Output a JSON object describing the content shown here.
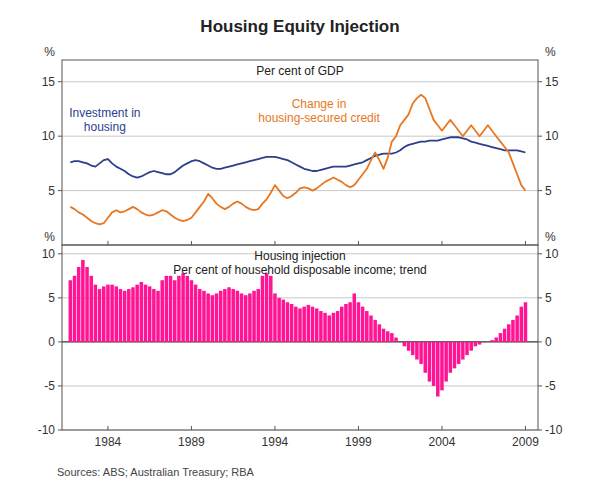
{
  "chart_data": [
    {
      "type": "line",
      "title": "Housing Equity Injection",
      "subtitle": "Per cent of GDP",
      "x": [
        1981.75,
        1982,
        1982.25,
        1982.5,
        1982.75,
        1983,
        1983.25,
        1983.5,
        1983.75,
        1984,
        1984.25,
        1984.5,
        1984.75,
        1985,
        1985.25,
        1985.5,
        1985.75,
        1986,
        1986.25,
        1986.5,
        1986.75,
        1987,
        1987.25,
        1987.5,
        1987.75,
        1988,
        1988.25,
        1988.5,
        1988.75,
        1989,
        1989.25,
        1989.5,
        1989.75,
        1990,
        1990.25,
        1990.5,
        1990.75,
        1991,
        1991.25,
        1991.5,
        1991.75,
        1992,
        1992.25,
        1992.5,
        1992.75,
        1993,
        1993.25,
        1993.5,
        1993.75,
        1994,
        1994.25,
        1994.5,
        1994.75,
        1995,
        1995.25,
        1995.5,
        1995.75,
        1996,
        1996.25,
        1996.5,
        1996.75,
        1997,
        1997.25,
        1997.5,
        1997.75,
        1998,
        1998.25,
        1998.5,
        1998.75,
        1999,
        1999.25,
        1999.5,
        1999.75,
        2000,
        2000.25,
        2000.5,
        2000.75,
        2001,
        2001.25,
        2001.5,
        2001.75,
        2002,
        2002.25,
        2002.5,
        2002.75,
        2003,
        2003.25,
        2003.5,
        2003.75,
        2004,
        2004.25,
        2004.5,
        2004.75,
        2005,
        2005.25,
        2005.5,
        2005.75,
        2006,
        2006.25,
        2006.5,
        2006.75,
        2007,
        2007.25,
        2007.5,
        2007.75,
        2008,
        2008.25,
        2008.5,
        2008.75,
        2009
      ],
      "series": [
        {
          "name": "Investment in\nhousing",
          "color": "#2B3F8C",
          "values": [
            7.6,
            7.7,
            7.7,
            7.6,
            7.5,
            7.3,
            7.2,
            7.5,
            7.8,
            7.9,
            7.5,
            7.2,
            7.0,
            6.8,
            6.5,
            6.3,
            6.2,
            6.3,
            6.5,
            6.7,
            6.8,
            6.7,
            6.6,
            6.5,
            6.5,
            6.7,
            7.0,
            7.3,
            7.5,
            7.7,
            7.8,
            7.7,
            7.5,
            7.3,
            7.1,
            7.0,
            7.0,
            7.1,
            7.2,
            7.3,
            7.4,
            7.5,
            7.6,
            7.7,
            7.8,
            7.9,
            8.0,
            8.1,
            8.1,
            8.1,
            8.0,
            7.9,
            7.8,
            7.6,
            7.4,
            7.2,
            7.0,
            6.9,
            6.8,
            6.8,
            6.9,
            7.0,
            7.1,
            7.2,
            7.2,
            7.2,
            7.2,
            7.3,
            7.4,
            7.5,
            7.6,
            7.8,
            8.0,
            8.2,
            8.3,
            8.4,
            8.4,
            8.4,
            8.5,
            8.7,
            9.0,
            9.2,
            9.3,
            9.4,
            9.5,
            9.5,
            9.6,
            9.6,
            9.6,
            9.7,
            9.8,
            9.9,
            9.9,
            9.9,
            9.8,
            9.7,
            9.5,
            9.4,
            9.3,
            9.2,
            9.1,
            9.0,
            8.9,
            8.8,
            8.7,
            8.7,
            8.7,
            8.7,
            8.6,
            8.5
          ]
        },
        {
          "name": "Change in\nhousing-secured credit",
          "color": "#E87722",
          "values": [
            3.5,
            3.3,
            3.0,
            2.8,
            2.5,
            2.2,
            2.0,
            1.9,
            2.0,
            2.5,
            3.0,
            3.2,
            3.0,
            3.1,
            3.3,
            3.5,
            3.3,
            3.0,
            2.8,
            2.7,
            2.8,
            3.0,
            3.2,
            3.1,
            2.8,
            2.5,
            2.3,
            2.2,
            2.3,
            2.5,
            3.0,
            3.5,
            4.0,
            4.7,
            4.3,
            3.8,
            3.5,
            3.3,
            3.5,
            3.8,
            4.0,
            3.8,
            3.5,
            3.3,
            3.2,
            3.3,
            3.8,
            4.2,
            4.8,
            5.5,
            5.0,
            4.5,
            4.3,
            4.5,
            4.8,
            5.2,
            5.3,
            5.2,
            5.0,
            5.2,
            5.5,
            5.8,
            6.0,
            6.2,
            6.0,
            5.8,
            5.5,
            5.3,
            5.5,
            6.0,
            6.5,
            7.0,
            7.8,
            8.5,
            7.8,
            7.0,
            8.0,
            9.5,
            10.0,
            11.0,
            11.5,
            12.0,
            13.0,
            13.5,
            13.8,
            13.5,
            12.5,
            11.5,
            11.0,
            10.5,
            11.0,
            11.5,
            11.0,
            10.5,
            10.0,
            10.5,
            11.0,
            10.5,
            10.0,
            10.5,
            11.0,
            10.5,
            10.0,
            9.5,
            9.0,
            8.5,
            7.5,
            6.5,
            5.5,
            5.0
          ]
        }
      ],
      "xlim": [
        1981.25,
        2009.75
      ],
      "xticks": [
        1984,
        1989,
        1994,
        1999,
        2004,
        2009
      ],
      "ylim": [
        0,
        17
      ],
      "yticks": [
        5,
        10,
        15
      ],
      "y2lim": [
        0,
        17
      ],
      "y2ticks": [
        5,
        10,
        15
      ],
      "ylabel": "%",
      "y2label": "%",
      "grid": true,
      "tick_labels": "y"
    },
    {
      "type": "bar",
      "subtitle": "Housing injection\nPer cent of household disposable income; trend",
      "x": [
        1981.75,
        1982,
        1982.25,
        1982.5,
        1982.75,
        1983,
        1983.25,
        1983.5,
        1983.75,
        1984,
        1984.25,
        1984.5,
        1984.75,
        1985,
        1985.25,
        1985.5,
        1985.75,
        1986,
        1986.25,
        1986.5,
        1986.75,
        1987,
        1987.25,
        1987.5,
        1987.75,
        1988,
        1988.25,
        1988.5,
        1988.75,
        1989,
        1989.25,
        1989.5,
        1989.75,
        1990,
        1990.25,
        1990.5,
        1990.75,
        1991,
        1991.25,
        1991.5,
        1991.75,
        1992,
        1992.25,
        1992.5,
        1992.75,
        1993,
        1993.25,
        1993.5,
        1993.75,
        1994,
        1994.25,
        1994.5,
        1994.75,
        1995,
        1995.25,
        1995.5,
        1995.75,
        1996,
        1996.25,
        1996.5,
        1996.75,
        1997,
        1997.25,
        1997.5,
        1997.75,
        1998,
        1998.25,
        1998.5,
        1998.75,
        1999,
        1999.25,
        1999.5,
        1999.75,
        2000,
        2000.25,
        2000.5,
        2000.75,
        2001,
        2001.25,
        2001.5,
        2001.75,
        2002,
        2002.25,
        2002.5,
        2002.75,
        2003,
        2003.25,
        2003.5,
        2003.75,
        2004,
        2004.25,
        2004.5,
        2004.75,
        2005,
        2005.25,
        2005.5,
        2005.75,
        2006,
        2006.25,
        2006.5,
        2006.75,
        2007,
        2007.25,
        2007.5,
        2007.75,
        2008,
        2008.25,
        2008.5,
        2008.75,
        2009
      ],
      "values": [
        7.0,
        7.5,
        8.5,
        9.3,
        8.5,
        7.5,
        6.5,
        6.0,
        6.3,
        6.5,
        6.5,
        6.3,
        6.0,
        5.8,
        6.0,
        6.2,
        6.5,
        6.8,
        6.5,
        6.3,
        6.0,
        5.8,
        7.0,
        7.5,
        7.5,
        7.0,
        7.5,
        7.8,
        7.5,
        7.0,
        6.5,
        6.0,
        5.8,
        5.5,
        5.3,
        5.5,
        5.8,
        6.0,
        6.2,
        6.0,
        5.8,
        5.5,
        5.3,
        5.5,
        5.8,
        6.0,
        7.5,
        7.8,
        7.5,
        5.5,
        5.0,
        4.8,
        4.5,
        4.3,
        4.0,
        3.8,
        4.0,
        4.2,
        4.0,
        3.8,
        3.5,
        3.3,
        3.0,
        3.3,
        3.5,
        4.0,
        4.3,
        4.5,
        5.5,
        4.5,
        4.0,
        3.5,
        3.0,
        2.5,
        2.0,
        1.5,
        1.2,
        1.0,
        0.5,
        0.0,
        -0.5,
        -1.0,
        -1.5,
        -2.0,
        -2.5,
        -3.5,
        -4.5,
        -5.0,
        -6.2,
        -5.5,
        -4.5,
        -3.5,
        -3.0,
        -2.5,
        -2.0,
        -1.5,
        -1.0,
        -0.5,
        -0.3,
        0.0,
        0.0,
        0.2,
        0.5,
        1.0,
        1.5,
        2.0,
        2.5,
        3.0,
        4.0,
        4.5
      ],
      "color": "#FF1493",
      "xlim": [
        1981.25,
        2009.75
      ],
      "xticks": [
        1984,
        1989,
        1994,
        1999,
        2004,
        2009
      ],
      "ylim": [
        -10,
        11
      ],
      "yticks": [
        -10,
        -5,
        0,
        5,
        10
      ],
      "y2lim": [
        -10,
        11
      ],
      "y2ticks": [
        -10,
        -5,
        0,
        5,
        10
      ],
      "ylabel": "%",
      "y2label": "%",
      "grid": true,
      "annotations": [
        "Sources: ABS; Australian Treasury; RBA"
      ]
    }
  ]
}
